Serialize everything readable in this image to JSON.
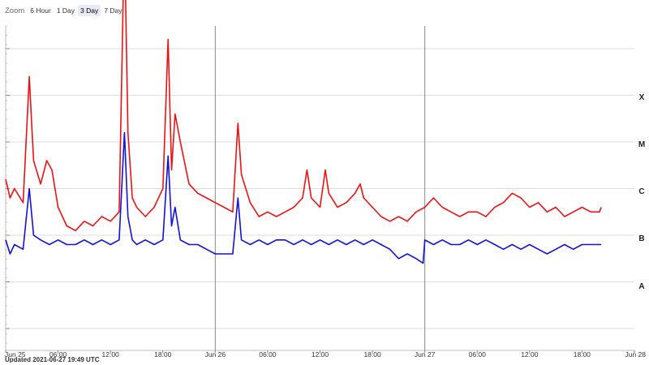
{
  "zoom": {
    "label": "Zoom",
    "options": [
      "6 Hour",
      "1 Day",
      "3 Day",
      "7 Day"
    ],
    "selected": "3 Day"
  },
  "footer": {
    "updated": "Updated 2021-06-27 19:49 UTC"
  },
  "colors": {
    "series_red": "#ee1111",
    "series_blue": "#1111dd",
    "grid": "#dddddd",
    "day_line": "#888888"
  },
  "chart_data": {
    "type": "line",
    "x_axis": {
      "ticks": [
        "Jun 25",
        "06:00",
        "12:00",
        "18:00",
        "Jun 26",
        "06:00",
        "12:00",
        "18:00",
        "Jun 27",
        "06:00",
        "12:00",
        "18:00",
        "Jun 28"
      ],
      "tick_hours": [
        0,
        6,
        12,
        18,
        24,
        30,
        36,
        42,
        48,
        54,
        60,
        66,
        72
      ],
      "range_hours": [
        0,
        72
      ],
      "day_lines_hours": [
        24,
        48
      ]
    },
    "y_axis": {
      "scale": "log",
      "class_labels": [
        "X",
        "M",
        "C",
        "B",
        "A"
      ],
      "grid": true
    },
    "series": [
      {
        "color": "#ee1111",
        "x_hours": [
          0,
          0.5,
          1,
          2,
          2.7,
          3.2,
          4,
          4.7,
          5.3,
          6,
          7,
          8,
          9,
          10,
          11,
          12,
          13,
          13.6,
          14,
          14.5,
          15,
          16,
          17,
          18,
          18.6,
          19,
          19.4,
          20,
          21,
          22,
          23,
          24,
          25,
          26,
          26.6,
          27,
          28,
          29,
          30,
          31,
          32,
          33,
          34,
          34.5,
          35,
          36,
          36.6,
          37,
          38,
          39,
          40,
          40.6,
          41,
          42,
          43,
          44,
          45,
          46,
          47,
          48,
          49,
          50,
          51,
          52,
          53,
          54,
          55,
          56,
          57,
          58,
          59,
          60,
          61,
          62,
          63,
          64,
          65,
          66,
          67,
          68,
          68.2
        ],
        "values": [
          3.2,
          2.8,
          3.0,
          2.7,
          5.4,
          3.6,
          3.1,
          3.6,
          3.4,
          2.6,
          2.2,
          2.1,
          2.3,
          2.2,
          2.4,
          2.3,
          2.5,
          8.5,
          4.2,
          2.8,
          2.6,
          2.4,
          2.6,
          3.0,
          6.2,
          3.4,
          4.6,
          4.0,
          3.1,
          2.9,
          2.8,
          2.7,
          2.6,
          2.5,
          4.4,
          3.3,
          2.7,
          2.4,
          2.5,
          2.4,
          2.5,
          2.6,
          2.8,
          3.4,
          2.8,
          2.6,
          3.4,
          2.9,
          2.6,
          2.7,
          2.9,
          3.1,
          2.8,
          2.6,
          2.4,
          2.3,
          2.4,
          2.3,
          2.5,
          2.6,
          2.8,
          2.6,
          2.5,
          2.4,
          2.5,
          2.5,
          2.4,
          2.6,
          2.7,
          2.9,
          2.8,
          2.6,
          2.7,
          2.5,
          2.6,
          2.4,
          2.5,
          2.6,
          2.5,
          2.5,
          2.6
        ]
      },
      {
        "color": "#1111dd",
        "x_hours": [
          0,
          0.5,
          1,
          2,
          2.7,
          3.2,
          4,
          5,
          6,
          7,
          8,
          9,
          10,
          11,
          12,
          13,
          13.6,
          14,
          14.5,
          15,
          16,
          17,
          18,
          18.6,
          19,
          19.4,
          20,
          21,
          22,
          23,
          24,
          25,
          26,
          26.6,
          27,
          28,
          29,
          30,
          31,
          32,
          33,
          34,
          35,
          36,
          37,
          38,
          39,
          40,
          41,
          42,
          43,
          44,
          45,
          46,
          47,
          47.8,
          48,
          49,
          50,
          51,
          52,
          53,
          54,
          55,
          56,
          57,
          58,
          59,
          60,
          61,
          62,
          63,
          64,
          65,
          66,
          67,
          68,
          68.2
        ],
        "values": [
          1.9,
          1.6,
          1.8,
          1.7,
          3.0,
          2.0,
          1.9,
          1.8,
          1.9,
          1.8,
          1.8,
          1.9,
          1.8,
          1.9,
          1.8,
          1.9,
          4.2,
          2.4,
          1.9,
          1.8,
          1.9,
          1.8,
          1.9,
          3.7,
          2.2,
          2.6,
          1.9,
          1.8,
          1.8,
          1.7,
          1.6,
          1.6,
          1.6,
          2.8,
          1.9,
          1.8,
          1.9,
          1.8,
          1.9,
          1.9,
          1.8,
          1.9,
          1.8,
          1.9,
          1.8,
          1.9,
          1.8,
          1.9,
          1.8,
          1.9,
          1.8,
          1.7,
          1.5,
          1.6,
          1.5,
          1.4,
          1.9,
          1.8,
          1.9,
          1.8,
          1.8,
          1.9,
          1.8,
          1.9,
          1.8,
          1.7,
          1.8,
          1.7,
          1.8,
          1.7,
          1.6,
          1.7,
          1.8,
          1.7,
          1.8,
          1.8,
          1.8,
          1.8
        ]
      }
    ]
  }
}
